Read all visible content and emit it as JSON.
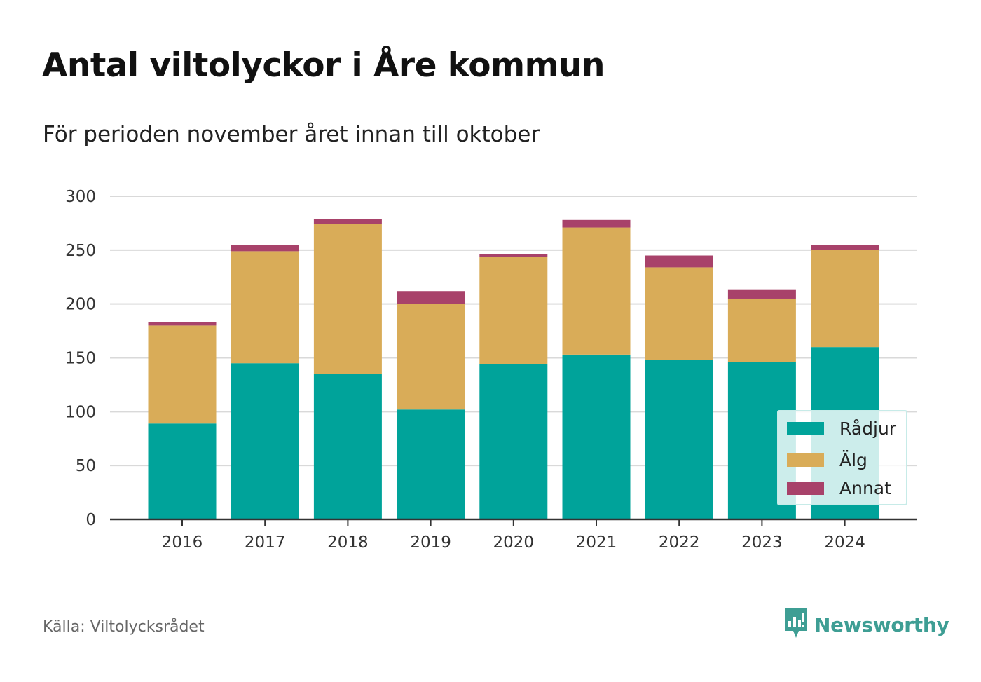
{
  "title": "Antal viltolyckor i Åre kommun",
  "subtitle": "För perioden november året innan till oktober",
  "source": "Källa: Viltolycksrådet",
  "brand": "Newsworthy",
  "colors": {
    "radjur": "#00a39a",
    "alg": "#d9ac58",
    "annat": "#a8426a",
    "grid": "#d9d9d9",
    "axis": "#333333",
    "brand": "#3e9e94"
  },
  "chart_data": {
    "type": "bar",
    "stacked": true,
    "categories": [
      "2016",
      "2017",
      "2018",
      "2019",
      "2020",
      "2021",
      "2022",
      "2023",
      "2024"
    ],
    "series": [
      {
        "name": "Rådjur",
        "color": "#00a39a",
        "values": [
          89,
          145,
          135,
          102,
          144,
          153,
          148,
          146,
          160
        ]
      },
      {
        "name": "Älg",
        "color": "#d9ac58",
        "values": [
          91,
          104,
          139,
          98,
          100,
          118,
          86,
          59,
          90
        ]
      },
      {
        "name": "Annat",
        "color": "#a8426a",
        "values": [
          3,
          6,
          5,
          12,
          2,
          7,
          11,
          8,
          5
        ]
      }
    ],
    "yticks": [
      0,
      50,
      100,
      150,
      200,
      250,
      300
    ],
    "ylim": [
      0,
      300
    ],
    "grid": true,
    "legend_position": "bottom-right"
  }
}
